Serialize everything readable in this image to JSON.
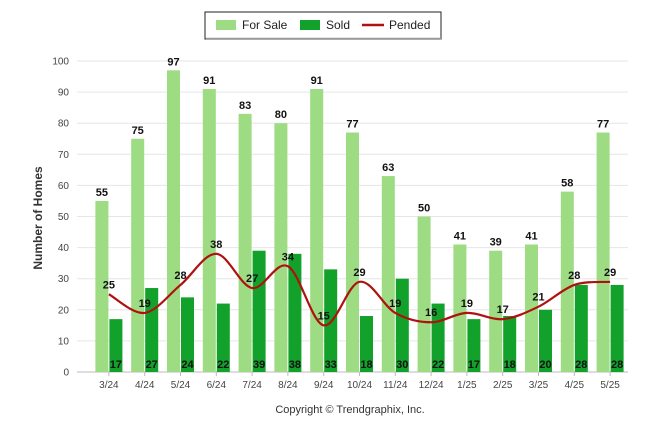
{
  "chart_data": {
    "type": "bar",
    "categories": [
      "3/24",
      "4/24",
      "5/24",
      "6/24",
      "7/24",
      "8/24",
      "9/24",
      "10/24",
      "11/24",
      "12/24",
      "1/25",
      "2/25",
      "3/25",
      "4/25",
      "5/25"
    ],
    "series": [
      {
        "name": "For Sale",
        "type": "bar",
        "color": "#9ddc82",
        "values": [
          55,
          75,
          97,
          91,
          83,
          80,
          91,
          77,
          63,
          50,
          41,
          39,
          41,
          58,
          77
        ]
      },
      {
        "name": "Sold",
        "type": "bar",
        "color": "#12a12a",
        "values": [
          17,
          27,
          24,
          22,
          39,
          38,
          33,
          18,
          30,
          22,
          17,
          18,
          20,
          28,
          28
        ]
      },
      {
        "name": "Pended",
        "type": "line",
        "color": "#b01010",
        "values": [
          25,
          19,
          28,
          38,
          27,
          34,
          15,
          29,
          19,
          16,
          19,
          17,
          21,
          28,
          29
        ]
      }
    ],
    "ylabel": "Number of Homes",
    "xlabel": "",
    "ylim": [
      0,
      100
    ],
    "yticks": [
      0,
      10,
      20,
      30,
      40,
      50,
      60,
      70,
      80,
      90,
      100
    ],
    "grid": true,
    "legend_position": "top-center"
  },
  "legend": {
    "for_sale": "For Sale",
    "sold": "Sold",
    "pended": "Pended"
  },
  "footer": {
    "copyright": "Copyright © Trendgraphix, Inc."
  }
}
